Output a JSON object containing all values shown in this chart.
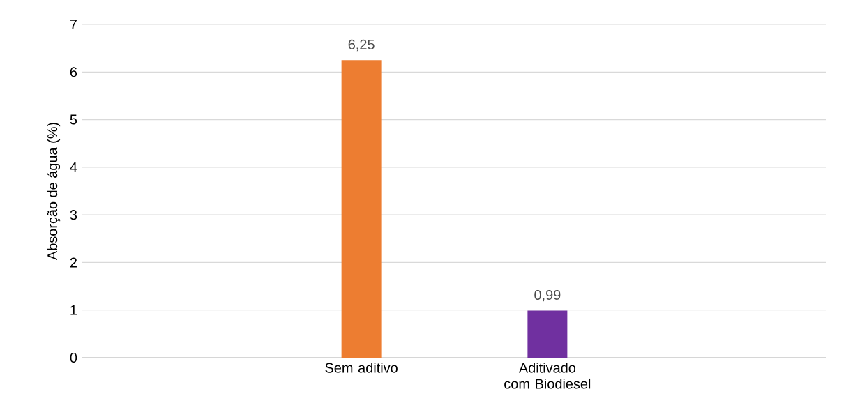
{
  "chart_data": {
    "type": "bar",
    "ylabel": "Absorção de água (%)",
    "categories": [
      null,
      "Sem aditivo",
      "Aditivado com Biodiesel",
      null
    ],
    "values": [
      null,
      6.25,
      0.99,
      null
    ],
    "colors": [
      "#ed7d31",
      "#ed7d31",
      "#7030a0",
      "#7030a0"
    ],
    "value_labels": [
      null,
      "6,25",
      "0,99",
      null
    ],
    "ylim": [
      0,
      7
    ],
    "yticks": [
      0,
      1,
      2,
      3,
      4,
      5,
      6,
      7
    ],
    "grid": "y"
  }
}
